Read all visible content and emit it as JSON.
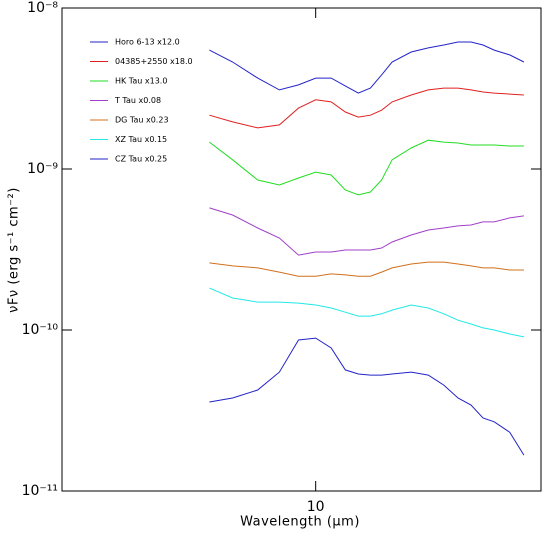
{
  "chart_data": {
    "type": "line",
    "xlabel": "Wavelength (μm)",
    "ylabel": "νFν (erg s⁻¹ cm⁻²)",
    "xscale": "log",
    "yscale": "log",
    "xlim": [
      2.1,
      40
    ],
    "ylim": [
      1e-11,
      1e-08
    ],
    "xticks": [
      10
    ],
    "yticks": [
      {
        "value": 1e-11,
        "label": "10⁻¹¹"
      },
      {
        "value": 1e-10,
        "label": "10⁻¹⁰"
      },
      {
        "value": 1e-09,
        "label": "10⁻⁹"
      },
      {
        "value": 1e-08,
        "label": "10⁻⁸"
      }
    ],
    "legend": "upper left",
    "x": [
      5.2,
      6,
      7,
      8,
      9,
      10,
      11,
      12,
      13,
      14,
      15,
      16,
      18,
      20,
      22,
      24,
      26,
      28,
      30,
      33,
      36
    ],
    "series": [
      {
        "name": "Horo 6-13 x12.0",
        "color": "#2323c8",
        "values": [
          5.48e-09,
          4.62e-09,
          3.67e-09,
          3.1e-09,
          3.33e-09,
          3.67e-09,
          3.67e-09,
          3.28e-09,
          2.96e-09,
          3.18e-09,
          3.84e-09,
          4.62e-09,
          5.33e-09,
          5.65e-09,
          5.89e-09,
          6.15e-09,
          6.15e-09,
          5.89e-09,
          5.48e-09,
          5.11e-09,
          4.62e-09
        ]
      },
      {
        "name": "04385+2550 x18.0",
        "color": "#e02020",
        "values": [
          2.16e-09,
          1.96e-09,
          1.8e-09,
          1.88e-09,
          2.39e-09,
          2.69e-09,
          2.61e-09,
          2.26e-09,
          2.1e-09,
          2.16e-09,
          2.32e-09,
          2.61e-09,
          2.88e-09,
          3.1e-09,
          3.18e-09,
          3.18e-09,
          3.1e-09,
          3.01e-09,
          2.96e-09,
          2.92e-09,
          2.88e-09
        ]
      },
      {
        "name": "HK Tau x13.0",
        "color": "#22dd22",
        "values": [
          1.47e-09,
          1.14e-09,
          8.55e-10,
          7.96e-10,
          8.79e-10,
          9.57e-10,
          9.18e-10,
          7.41e-10,
          6.9e-10,
          7.2e-10,
          8.55e-10,
          1.14e-09,
          1.35e-09,
          1.51e-09,
          1.47e-09,
          1.45e-09,
          1.41e-09,
          1.41e-09,
          1.41e-09,
          1.39e-09,
          1.39e-09
        ]
      },
      {
        "name": "T Tau x0.08",
        "color": "#a040c8",
        "values": [
          5.73e-10,
          5.18e-10,
          4.3e-10,
          3.73e-10,
          2.92e-10,
          3.05e-10,
          3.05e-10,
          3.14e-10,
          3.14e-10,
          3.14e-10,
          3.23e-10,
          3.52e-10,
          3.89e-10,
          4.18e-10,
          4.3e-10,
          4.43e-10,
          4.49e-10,
          4.69e-10,
          4.69e-10,
          4.97e-10,
          5.11e-10
        ]
      },
      {
        "name": "DG Tau x0.23",
        "color": "#d0701e",
        "values": [
          2.61e-10,
          2.5e-10,
          2.43e-10,
          2.29e-10,
          2.16e-10,
          2.16e-10,
          2.23e-10,
          2.2e-10,
          2.16e-10,
          2.16e-10,
          2.29e-10,
          2.43e-10,
          2.57e-10,
          2.64e-10,
          2.64e-10,
          2.57e-10,
          2.5e-10,
          2.43e-10,
          2.43e-10,
          2.36e-10,
          2.36e-10
        ]
      },
      {
        "name": "XZ Tau x0.15",
        "color": "#22e8e8",
        "values": [
          1.82e-10,
          1.58e-10,
          1.49e-10,
          1.49e-10,
          1.47e-10,
          1.43e-10,
          1.37e-10,
          1.29e-10,
          1.22e-10,
          1.22e-10,
          1.26e-10,
          1.33e-10,
          1.43e-10,
          1.37e-10,
          1.26e-10,
          1.15e-10,
          1.09e-10,
          1.03e-10,
          1e-10,
          9.44e-11,
          9.06e-11
        ]
      },
      {
        "name": "CZ Tau x0.25",
        "color": "#2323c8",
        "values": [
          3.57e-11,
          3.78e-11,
          4.24e-11,
          5.48e-11,
          8.67e-11,
          8.91e-11,
          7.73e-11,
          5.65e-11,
          5.33e-11,
          5.25e-11,
          5.25e-11,
          5.33e-11,
          5.48e-11,
          5.25e-11,
          4.55e-11,
          3.78e-11,
          3.42e-11,
          2.84e-11,
          2.69e-11,
          2.32e-11,
          1.67e-11
        ]
      }
    ]
  }
}
